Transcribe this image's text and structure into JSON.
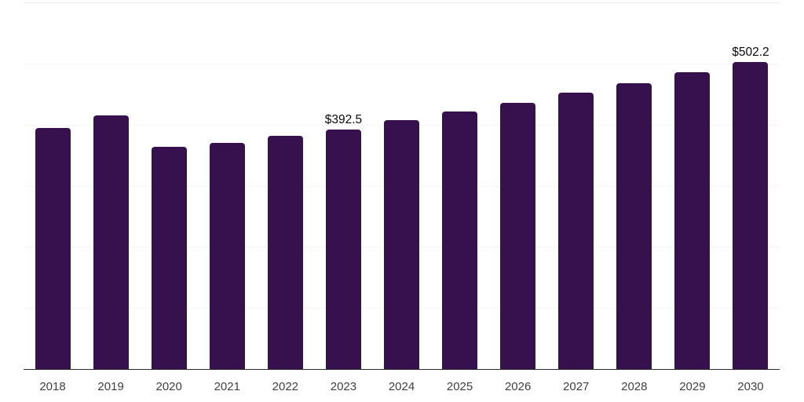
{
  "chart_data": {
    "type": "bar",
    "title": "",
    "xlabel": "",
    "ylabel": "",
    "categories": [
      "2018",
      "2019",
      "2020",
      "2021",
      "2022",
      "2023",
      "2024",
      "2025",
      "2026",
      "2027",
      "2028",
      "2029",
      "2030"
    ],
    "values": [
      395,
      415,
      363,
      370,
      381,
      392.5,
      407,
      421,
      436,
      452,
      468,
      486,
      502.2
    ],
    "data_labels": {
      "2023": "$392.5",
      "2030": "$502.2"
    },
    "ylim": [
      0,
      600
    ],
    "gridline_values": [
      100,
      200,
      300,
      400,
      500,
      600
    ],
    "grid": "horizontal-only",
    "legend": "none",
    "y_axis_labels": "none",
    "bar_color": "#36114E",
    "axis_color": "#2b2b2b",
    "gridline_color": "#f4f4f4",
    "top_gridline_color": "#ebebeb",
    "value_label_color": "#0a0a0a",
    "tick_label_color": "#3f3f3f"
  }
}
